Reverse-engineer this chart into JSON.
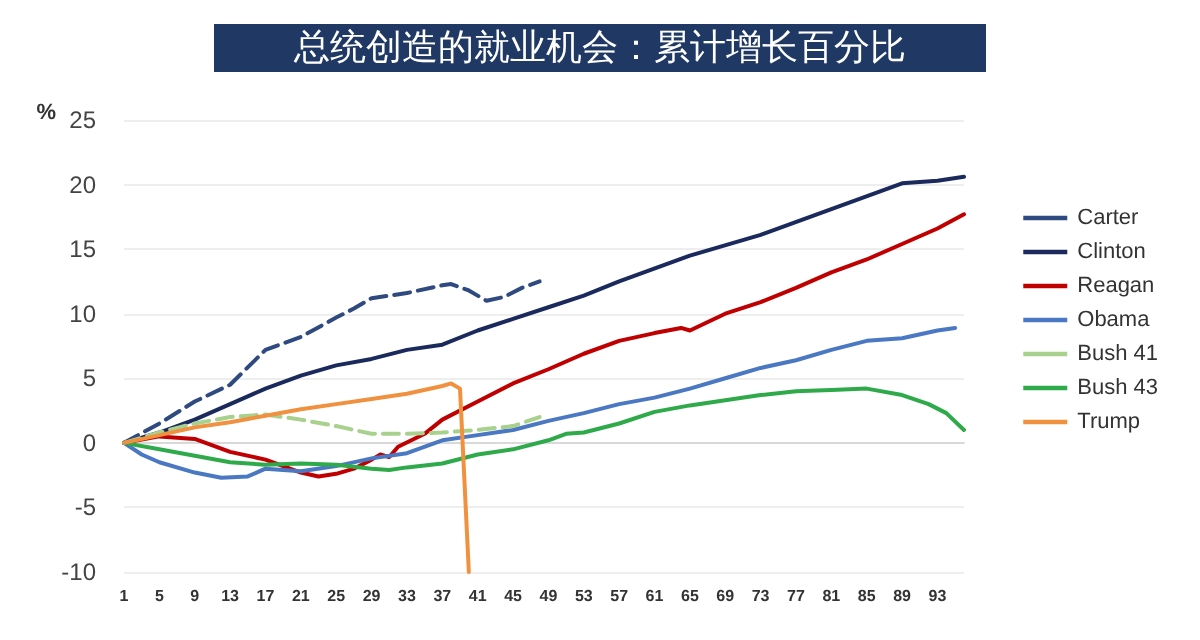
{
  "chart_data": {
    "type": "line",
    "title": "总统创造的就业机会：累计增长百分比",
    "ylabel": "%",
    "xlim": [
      1,
      96
    ],
    "xticks": [
      1,
      5,
      9,
      13,
      17,
      21,
      25,
      29,
      33,
      37,
      41,
      45,
      49,
      53,
      57,
      61,
      65,
      69,
      73,
      77,
      81,
      85,
      89,
      93
    ],
    "ylim": [
      -10,
      25
    ],
    "yticks": [
      -10,
      -5,
      0,
      5,
      10,
      15,
      20,
      25
    ],
    "grid": "y",
    "legend": "right",
    "marker": "none",
    "series": [
      {
        "name": "Carter",
        "color": "#2f4a80",
        "line_style": "dashed",
        "x": [
          1,
          5,
          9,
          13,
          17,
          21,
          25,
          27,
          29,
          33,
          37,
          38,
          40,
          42,
          44,
          46,
          48
        ],
        "values": [
          0,
          1.5,
          3.2,
          4.5,
          7.2,
          8.2,
          9.7,
          10.4,
          11.2,
          11.6,
          12.2,
          12.3,
          11.8,
          11.0,
          11.3,
          12.0,
          12.5
        ]
      },
      {
        "name": "Clinton",
        "color": "#1b2a5c",
        "line_style": "solid",
        "x": [
          1,
          5,
          9,
          13,
          17,
          21,
          25,
          29,
          33,
          37,
          41,
          45,
          49,
          53,
          57,
          65,
          73,
          81,
          89,
          93,
          96
        ],
        "values": [
          0,
          0.8,
          1.8,
          3.0,
          4.2,
          5.2,
          6.0,
          6.5,
          7.2,
          7.6,
          8.7,
          9.6,
          10.5,
          11.4,
          12.5,
          14.5,
          16.1,
          18.1,
          20.1,
          20.3,
          20.6
        ]
      },
      {
        "name": "Reagan",
        "color": "#c00000",
        "line_style": "solid",
        "x": [
          1,
          5,
          9,
          13,
          17,
          21,
          23,
          25,
          27,
          29,
          30,
          31,
          32,
          35,
          37,
          41,
          45,
          49,
          53,
          57,
          61,
          64,
          65,
          69,
          73,
          77,
          81,
          85,
          89,
          93,
          96
        ],
        "values": [
          0,
          0.5,
          0.3,
          -0.7,
          -1.3,
          -2.3,
          -2.6,
          -2.4,
          -2.0,
          -1.3,
          -0.9,
          -1.1,
          -0.3,
          0.7,
          1.8,
          3.2,
          4.6,
          5.7,
          6.9,
          7.9,
          8.5,
          8.9,
          8.7,
          10.0,
          10.9,
          12.0,
          13.2,
          14.2,
          15.4,
          16.6,
          17.7
        ]
      },
      {
        "name": "Obama",
        "color": "#4a78c2",
        "line_style": "solid",
        "x": [
          1,
          3,
          5,
          9,
          12,
          15,
          17,
          21,
          25,
          29,
          33,
          37,
          41,
          45,
          49,
          53,
          57,
          61,
          65,
          69,
          73,
          77,
          81,
          85,
          89,
          93,
          95
        ],
        "values": [
          0,
          -0.9,
          -1.5,
          -2.3,
          -2.7,
          -2.6,
          -2.0,
          -2.2,
          -1.8,
          -1.2,
          -0.8,
          0.2,
          0.6,
          1.0,
          1.7,
          2.3,
          3.0,
          3.5,
          4.2,
          5.0,
          5.8,
          6.4,
          7.2,
          7.9,
          8.1,
          8.7,
          8.9
        ]
      },
      {
        "name": "Bush 41",
        "color": "#a9d18e",
        "line_style": "dashed",
        "x": [
          1,
          5,
          9,
          13,
          17,
          21,
          25,
          29,
          33,
          37,
          41,
          45,
          48
        ],
        "values": [
          0,
          0.8,
          1.5,
          2.0,
          2.2,
          1.8,
          1.3,
          0.7,
          0.7,
          0.8,
          1.0,
          1.3,
          2.0
        ]
      },
      {
        "name": "Bush 43",
        "color": "#2eaa4a",
        "line_style": "solid",
        "x": [
          1,
          5,
          9,
          13,
          17,
          21,
          25,
          29,
          31,
          33,
          37,
          41,
          45,
          49,
          51,
          53,
          57,
          61,
          65,
          69,
          73,
          77,
          81,
          85,
          89,
          92,
          94,
          96
        ],
        "values": [
          0,
          -0.5,
          -1.0,
          -1.5,
          -1.7,
          -1.6,
          -1.7,
          -2.0,
          -2.1,
          -1.9,
          -1.6,
          -0.9,
          -0.5,
          0.2,
          0.7,
          0.8,
          1.5,
          2.4,
          2.9,
          3.3,
          3.7,
          4.0,
          4.1,
          4.2,
          3.7,
          3.0,
          2.3,
          1.0
        ]
      },
      {
        "name": "Trump",
        "color": "#f0913f",
        "line_style": "solid",
        "x": [
          1,
          5,
          9,
          13,
          17,
          21,
          25,
          29,
          33,
          37,
          38,
          39,
          40
        ],
        "values": [
          0,
          0.6,
          1.2,
          1.6,
          2.1,
          2.6,
          3.0,
          3.4,
          3.8,
          4.4,
          4.6,
          4.2,
          -10
        ]
      }
    ]
  }
}
